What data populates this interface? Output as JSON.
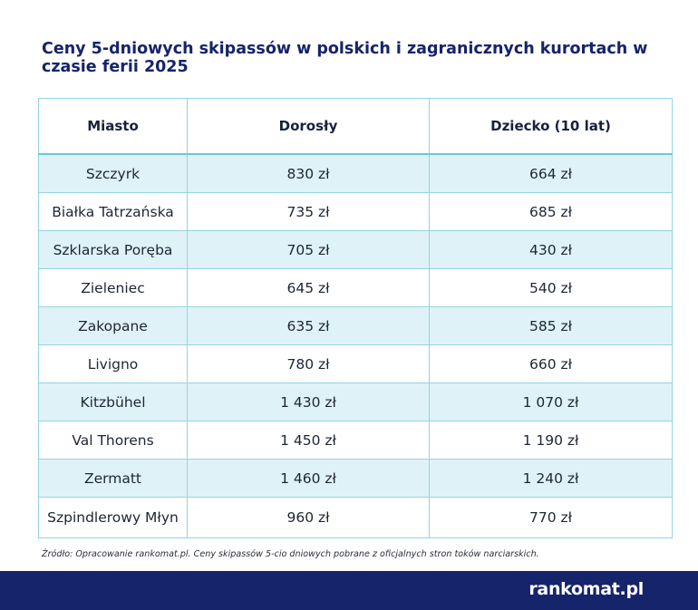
{
  "title": "Ceny 5-dniowych skipassów w polskich i zagranicznych kurortach w czasie ferii 2025",
  "table": {
    "headers": [
      "Miasto",
      "Dorosły",
      "Dziecko (10 lat)"
    ],
    "rows": [
      [
        "Szczyrk",
        "830 zł",
        "664 zł"
      ],
      [
        "Białka Tatrzańska",
        "735 zł",
        "685 zł"
      ],
      [
        "Szklarska Poręba",
        "705 zł",
        "430 zł"
      ],
      [
        "Zieleniec",
        "645 zł",
        "540 zł"
      ],
      [
        "Zakopane",
        "635 zł",
        "585 zł"
      ],
      [
        "Livigno",
        "780 zł",
        "660 zł"
      ],
      [
        "Kitzbühel",
        "1 430 zł",
        "1 070 zł"
      ],
      [
        "Val Thorens",
        "1 450 zł",
        "1 190 zł"
      ],
      [
        "Zermatt",
        "1 460 zł",
        "1 240 zł"
      ],
      [
        "Szpindlerowy Młyn",
        "960 zł",
        "770 zł"
      ]
    ]
  },
  "source": "Źródło: Opracowanie rankomat.pl. Ceny skipassów 5-cio dniowych pobrane z oficjalnych stron toków narciarskich.",
  "footer": {
    "logo_text": "rankomat.pl"
  },
  "colors": {
    "navy": "#16246b",
    "row_stripe": "#dff2f8",
    "border": "#93d3e6"
  }
}
